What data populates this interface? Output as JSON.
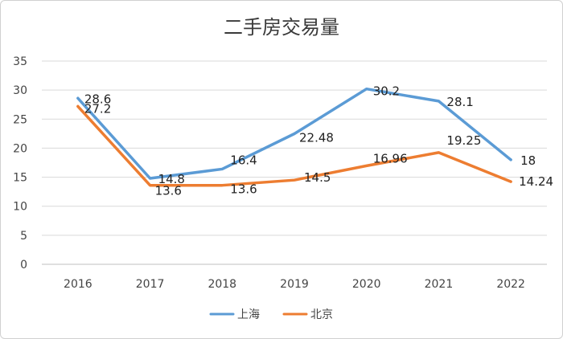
{
  "chart_data": {
    "type": "line",
    "title": "二手房交易量",
    "xlabel": "",
    "ylabel": "",
    "categories": [
      "2016",
      "2017",
      "2018",
      "2019",
      "2020",
      "2021",
      "2022"
    ],
    "ylim": [
      0,
      35
    ],
    "yticks": [
      0,
      5,
      10,
      15,
      20,
      25,
      30,
      35
    ],
    "grid": true,
    "legend_position": "bottom",
    "series": [
      {
        "name": "上海",
        "color": "#5b9bd5",
        "values": [
          28.6,
          14.8,
          16.4,
          22.48,
          30.2,
          28.1,
          18
        ],
        "labels": [
          "28.6",
          "14.8",
          "16.4",
          "22.48",
          "30.2",
          "28.1",
          "18"
        ]
      },
      {
        "name": "北京",
        "color": "#ed7d31",
        "values": [
          27.2,
          13.6,
          13.6,
          14.5,
          16.96,
          19.25,
          14.24
        ],
        "labels": [
          "27.2",
          "13.6",
          "13.6",
          "14.5",
          "16.96",
          "19.25",
          "14.24"
        ]
      }
    ]
  }
}
